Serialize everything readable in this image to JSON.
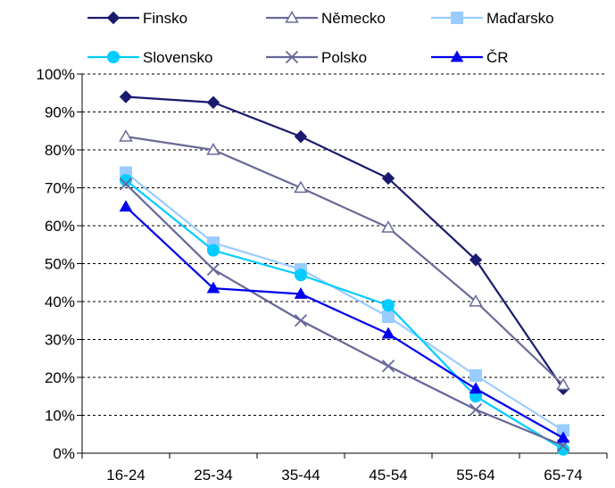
{
  "chart_data": {
    "type": "line",
    "categories": [
      "16-24",
      "25-34",
      "35-44",
      "45-54",
      "55-64",
      "65-74"
    ],
    "ylim": [
      0,
      100
    ],
    "y_ticks": [
      "0%",
      "10%",
      "20%",
      "30%",
      "40%",
      "50%",
      "60%",
      "70%",
      "80%",
      "90%",
      "100%"
    ],
    "grid": "horizontal dashed",
    "legend_position": "top",
    "series": [
      {
        "name": "Finsko",
        "values": [
          94,
          92.5,
          83.5,
          72.5,
          51,
          17
        ],
        "color": "#1a1a6e",
        "marker": "diamond"
      },
      {
        "name": "Německo",
        "values": [
          83.5,
          80,
          70,
          59.5,
          40,
          18
        ],
        "color": "#6b6b9a",
        "marker": "triangle-open"
      },
      {
        "name": "Maďarsko",
        "values": [
          74,
          55.5,
          48.5,
          36,
          20.5,
          6
        ],
        "color": "#99ccff",
        "marker": "square"
      },
      {
        "name": "Slovensko",
        "values": [
          72,
          53.5,
          47,
          39,
          15,
          1
        ],
        "color": "#00ccff",
        "marker": "circle"
      },
      {
        "name": "Polsko",
        "values": [
          71,
          48.5,
          35,
          23,
          11.5,
          2
        ],
        "color": "#666699",
        "marker": "x"
      },
      {
        "name": "ČR",
        "values": [
          65,
          43.5,
          42,
          31.5,
          17,
          4
        ],
        "color": "#0000ee",
        "marker": "triangle"
      }
    ]
  }
}
